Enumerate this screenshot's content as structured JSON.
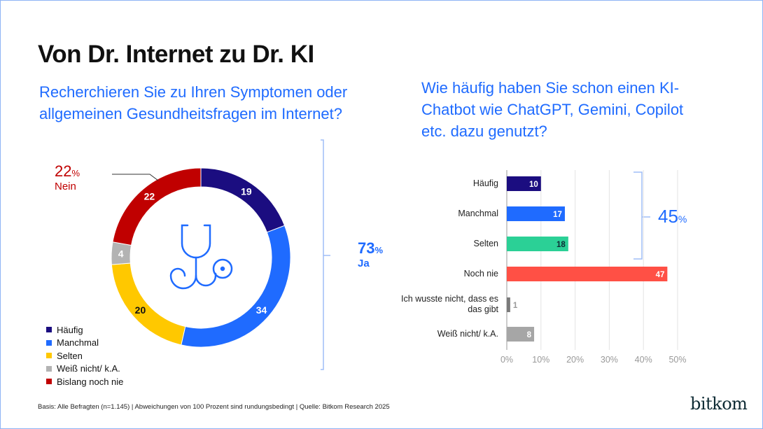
{
  "title": "Von Dr. Internet zu Dr. KI",
  "left": {
    "question": "Recherchieren Sie zu Ihren Symptomen oder allgemeinen Gesundheitsfragen im Internet?",
    "nein": {
      "value": "22",
      "pct": "%",
      "label": "Nein"
    },
    "ja": {
      "value": "73",
      "pct": "%",
      "label": "Ja"
    }
  },
  "right": {
    "question": "Wie häufig haben Sie schon einen KI-Chatbot wie ChatGPT, Gemini, Copilot etc. dazu genutzt?",
    "bracket": {
      "value": "45",
      "pct": "%"
    }
  },
  "chart_data": [
    {
      "type": "pie",
      "variant": "donut",
      "categories": [
        "Häufig",
        "Manchmal",
        "Selten",
        "Weiß nicht/ k.A.",
        "Bislang noch nie"
      ],
      "values": [
        19,
        34,
        20,
        4,
        22
      ],
      "colors": [
        "#1b0d80",
        "#1f6bff",
        "#ffc800",
        "#b3b3b3",
        "#c00000"
      ],
      "legend_position": "bottom-left"
    },
    {
      "type": "bar",
      "orientation": "horizontal",
      "categories": [
        "Häufig",
        "Manchmal",
        "Selten",
        "Noch nie",
        "Ich wusste nicht, dass es das gibt",
        "Weiß nicht/ k.A."
      ],
      "values": [
        10,
        17,
        18,
        47,
        1,
        8
      ],
      "colors": [
        "#1b0d80",
        "#1f6bff",
        "#2bd096",
        "#ff5045",
        "#7a7a7a",
        "#a6a6a6"
      ],
      "xlim": [
        0,
        50
      ],
      "xticks": [
        "0%",
        "10%",
        "20%",
        "30%",
        "40%",
        "50%"
      ],
      "grid": true
    }
  ],
  "footer": "Basis: Alle Befragten (n=1.145) | Abweichungen von 100 Prozent sind rundungsbedingt  | Quelle: Bitkom Research 2025",
  "logo": "bitkom"
}
